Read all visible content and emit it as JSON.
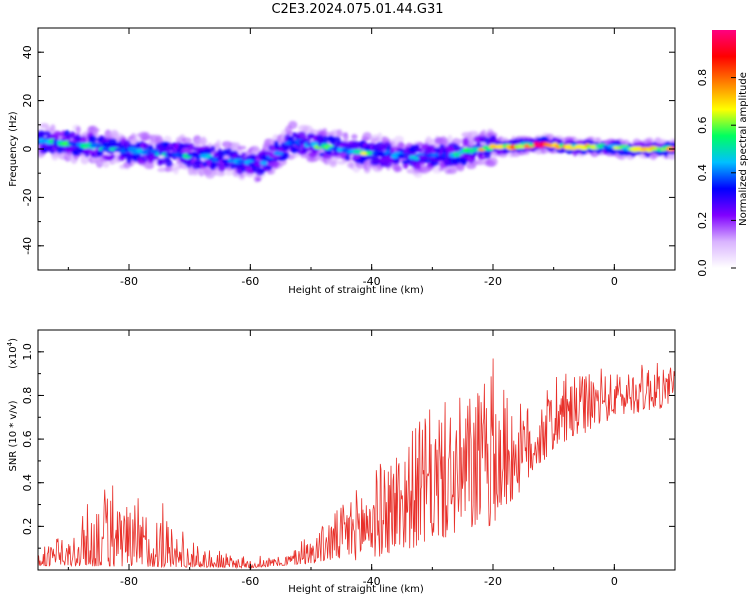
{
  "title": "C2E3.2024.075.01.44.G31",
  "colors": {
    "snr_line": "#e8302a",
    "axis": "#000000"
  },
  "chart_data": [
    {
      "type": "heatmap",
      "xlabel": "Height of straight line (km)",
      "ylabel": "Frequency (Hz)",
      "xlim": [
        -95,
        10
      ],
      "ylim": [
        -50,
        50
      ],
      "x_ticks": [
        -80,
        -60,
        -40,
        -20,
        0
      ],
      "y_ticks": [
        -40,
        -20,
        0,
        20,
        40
      ],
      "colorbar": {
        "label": "Normalized spectral amplitude",
        "range": [
          0,
          1
        ],
        "ticks": [
          "0.0",
          "0.2",
          "0.4",
          "0.6",
          "0.8"
        ],
        "colormap": [
          "#ffffff",
          "#d9b3ff",
          "#8000ff",
          "#0000ff",
          "#00c0ff",
          "#00ff60",
          "#ffff00",
          "#ff8000",
          "#ff0000",
          "#ff0080"
        ]
      },
      "band": {
        "points": [
          {
            "x": -93,
            "y": 3,
            "amp": 0.45
          },
          {
            "x": -88,
            "y": 2,
            "amp": 0.55
          },
          {
            "x": -83,
            "y": 0,
            "amp": 0.5
          },
          {
            "x": -78,
            "y": -1,
            "amp": 0.55
          },
          {
            "x": -73,
            "y": -2,
            "amp": 0.5
          },
          {
            "x": -68,
            "y": -3,
            "amp": 0.45
          },
          {
            "x": -63,
            "y": -5,
            "amp": 0.4
          },
          {
            "x": -58,
            "y": -6,
            "amp": 0.4
          },
          {
            "x": -53,
            "y": 3,
            "amp": 0.35
          },
          {
            "x": -48,
            "y": 1,
            "amp": 0.6
          },
          {
            "x": -43,
            "y": -1,
            "amp": 0.65
          },
          {
            "x": -38,
            "y": -2,
            "amp": 0.5
          },
          {
            "x": -33,
            "y": -3,
            "amp": 0.45
          },
          {
            "x": -28,
            "y": -3,
            "amp": 0.35
          },
          {
            "x": -23,
            "y": 0,
            "amp": 0.7
          },
          {
            "x": -18,
            "y": 1,
            "amp": 0.65
          },
          {
            "x": -12,
            "y": 2,
            "amp": 0.95
          },
          {
            "x": -7,
            "y": 1,
            "amp": 0.9
          },
          {
            "x": -2,
            "y": 1,
            "amp": 0.6
          },
          {
            "x": 3,
            "y": 0,
            "amp": 0.55
          },
          {
            "x": 8,
            "y": 0,
            "amp": 0.9
          }
        ]
      }
    },
    {
      "type": "line",
      "xlabel": "Height of straight line (km)",
      "ylabel": "SNR (10 * v/v)",
      "y_multiplier_label": "(x10",
      "y_multiplier_exp": "4",
      "xlim": [
        -95,
        10
      ],
      "ylim": [
        0,
        1.1
      ],
      "x_ticks": [
        -80,
        -60,
        -40,
        -20,
        0
      ],
      "y_ticks": [
        0.2,
        0.4,
        0.6,
        0.8,
        1.0
      ],
      "series": [
        {
          "envelope": [
            {
              "x": -95,
              "y": 0.1
            },
            {
              "x": -90,
              "y": 0.15
            },
            {
              "x": -85,
              "y": 0.4
            },
            {
              "x": -80,
              "y": 0.3
            },
            {
              "x": -75,
              "y": 0.3
            },
            {
              "x": -70,
              "y": 0.12
            },
            {
              "x": -65,
              "y": 0.08
            },
            {
              "x": -60,
              "y": 0.06
            },
            {
              "x": -55,
              "y": 0.06
            },
            {
              "x": -50,
              "y": 0.15
            },
            {
              "x": -45,
              "y": 0.3
            },
            {
              "x": -40,
              "y": 0.45
            },
            {
              "x": -35,
              "y": 0.6
            },
            {
              "x": -30,
              "y": 0.75
            },
            {
              "x": -25,
              "y": 0.8
            },
            {
              "x": -20,
              "y": 0.9
            },
            {
              "x": -15,
              "y": 0.75
            },
            {
              "x": -10,
              "y": 0.85
            },
            {
              "x": -5,
              "y": 0.9
            },
            {
              "x": 0,
              "y": 0.9
            },
            {
              "x": 5,
              "y": 0.95
            },
            {
              "x": 10,
              "y": 0.95
            }
          ],
          "floor": [
            {
              "x": -95,
              "y": 0.02
            },
            {
              "x": -60,
              "y": 0.01
            },
            {
              "x": -40,
              "y": 0.05
            },
            {
              "x": -20,
              "y": 0.2
            },
            {
              "x": -10,
              "y": 0.55
            },
            {
              "x": 0,
              "y": 0.7
            },
            {
              "x": 10,
              "y": 0.75
            }
          ]
        }
      ]
    }
  ]
}
